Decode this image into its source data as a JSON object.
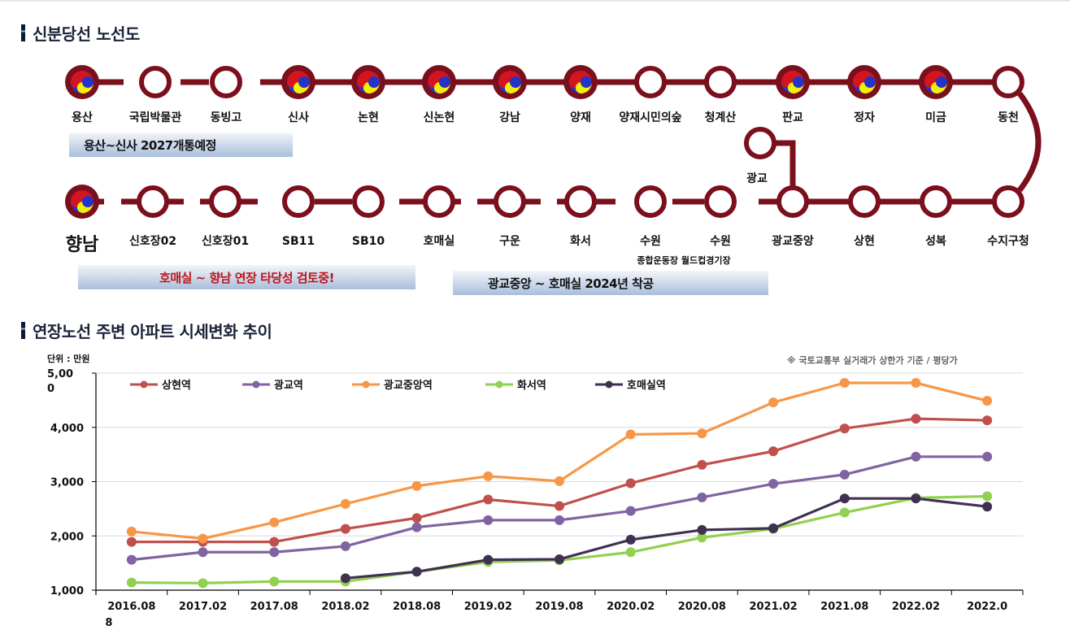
{
  "section1": {
    "title": "신분당선 노선도"
  },
  "section2": {
    "title": "연장노선 주변 아파트 시세변화 추이"
  },
  "colors": {
    "line": "#7b0f1c",
    "taeguk_red": "#d4141e",
    "taeguk_blue": "#2433c8",
    "taeguk_yellow": "#f5ee0b"
  },
  "route_map": {
    "top_row": [
      {
        "name": "용산",
        "transfer": true
      },
      {
        "name": "국립박물관",
        "transfer": false
      },
      {
        "name": "동빙고",
        "transfer": false
      },
      {
        "name": "신사",
        "transfer": true
      },
      {
        "name": "논현",
        "transfer": true
      },
      {
        "name": "신논현",
        "transfer": true
      },
      {
        "name": "강남",
        "transfer": true
      },
      {
        "name": "양재",
        "transfer": true
      },
      {
        "name": "양재시민의숲",
        "transfer": false
      },
      {
        "name": "청계산",
        "transfer": false
      },
      {
        "name": "판교",
        "transfer": true
      },
      {
        "name": "정자",
        "transfer": true
      },
      {
        "name": "미금",
        "transfer": true
      },
      {
        "name": "동천",
        "transfer": false
      }
    ],
    "bottom_row": [
      {
        "name": "향남",
        "transfer": true
      },
      {
        "name": "신호장02",
        "transfer": false
      },
      {
        "name": "신호장01",
        "transfer": false
      },
      {
        "name": "SB11",
        "transfer": false
      },
      {
        "name": "SB10",
        "transfer": false
      },
      {
        "name": "호매실",
        "transfer": false
      },
      {
        "name": "구운",
        "transfer": false
      },
      {
        "name": "화서",
        "transfer": false
      },
      {
        "name": "수원",
        "transfer": false
      },
      {
        "name": "수원",
        "transfer": false
      },
      {
        "name": "광교중앙",
        "transfer": false
      },
      {
        "name": "상현",
        "transfer": false
      },
      {
        "name": "성복",
        "transfer": false
      },
      {
        "name": "수지구청",
        "transfer": false
      }
    ],
    "branch_station": "광교",
    "sub_label": "종합운동장 월드컵경기장",
    "banners": {
      "yongsan": "용산~신사 2027개통예정",
      "homaesil": "호매실 ~ 향남 연장 타당성 검토중!",
      "gwanggyo": "광교중앙 ~ 호매실 2024년 착공"
    }
  },
  "chart_meta": {
    "unit": "단위 : 만원",
    "note": "※ 국토교통부 실거래가 상한가 기준 / 평당가"
  },
  "chart_data": {
    "type": "line",
    "title": "연장노선 주변 아파트 시세변화 추이",
    "xlabel": "",
    "ylabel": "단위 : 만원",
    "categories": [
      "2016.08\n8",
      "2017.02",
      "2017.08",
      "2018.02",
      "2018.08",
      "2019.02",
      "2019.08",
      "2020.02",
      "2020.08",
      "2021.02",
      "2021.08",
      "2022.02",
      "2022.0"
    ],
    "ylim": [
      1000,
      5000
    ],
    "yticks": [
      "1,000",
      "2,000",
      "3,000",
      "4,000",
      "5,00\n0"
    ],
    "grid": true,
    "legend_position": "top",
    "series": [
      {
        "name": "상현역",
        "color": "#c0504d",
        "values": [
          1890,
          1890,
          1890,
          2130,
          2330,
          2670,
          2550,
          2970,
          3310,
          3560,
          3980,
          4160,
          4130
        ]
      },
      {
        "name": "광교역",
        "color": "#8064a2",
        "values": [
          1560,
          1700,
          1700,
          1810,
          2160,
          2290,
          2290,
          2460,
          2710,
          2960,
          3130,
          3460,
          3460
        ]
      },
      {
        "name": "광교중앙역",
        "color": "#f79646",
        "values": [
          2080,
          1950,
          2250,
          2590,
          2920,
          3100,
          3010,
          3870,
          3890,
          4460,
          4820,
          4820,
          4490
        ]
      },
      {
        "name": "화서역",
        "color": "#92d050",
        "values": [
          1140,
          1130,
          1160,
          1160,
          1340,
          1520,
          1550,
          1700,
          1970,
          2130,
          2430,
          2700,
          2730
        ]
      },
      {
        "name": "호매실역",
        "color": "#403152",
        "values": [
          null,
          null,
          null,
          1220,
          1340,
          1560,
          1570,
          1930,
          2110,
          2140,
          2690,
          2690,
          2540
        ]
      }
    ]
  }
}
